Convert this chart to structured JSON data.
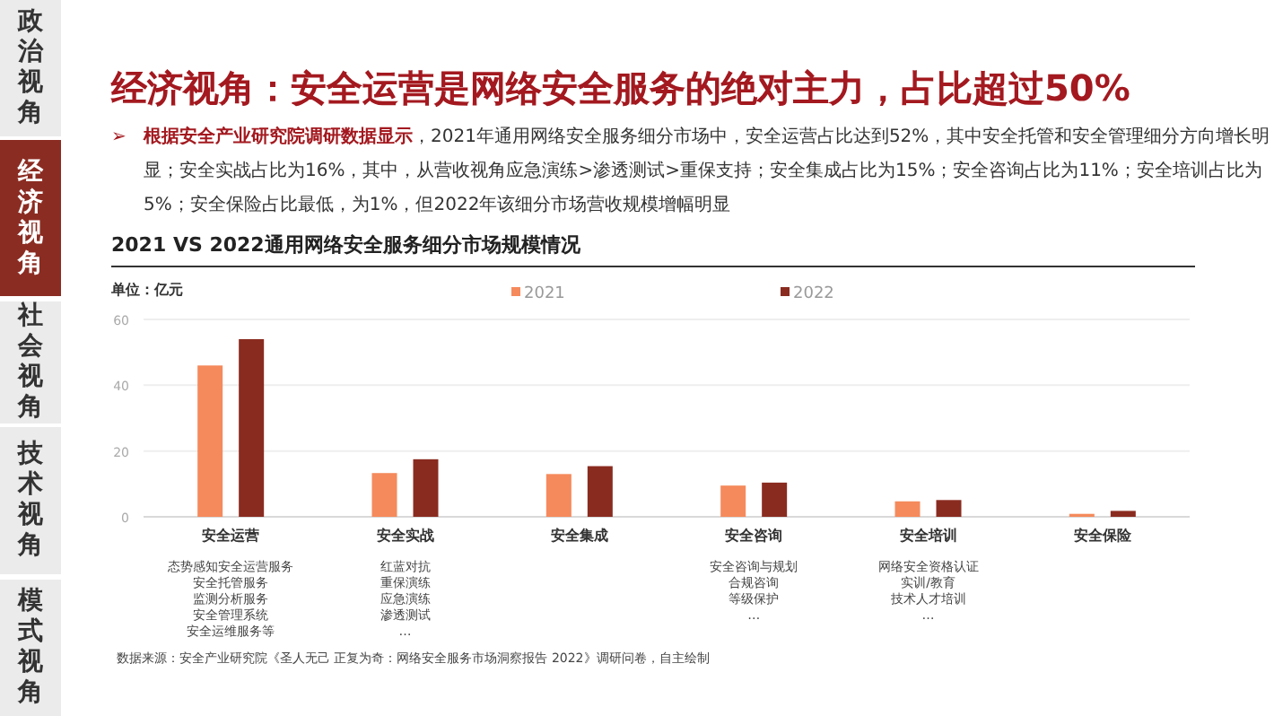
{
  "chart_data": {
    "type": "bar",
    "title": "经济视角：安全运营是网络安全服务的绝对主力，占比超过50%",
    "subtitle": "2021 VS 2022通用网络安全服务细分市场规模情况",
    "ylabel": "单位：亿元",
    "categories": [
      "安全运营",
      "安全实战",
      "安全集成",
      "安全咨询",
      "安全培训",
      "安全保险"
    ],
    "series": [
      {
        "name": "2021",
        "color": "#f58a5c",
        "values": [
          46,
          13.3,
          13,
          9.5,
          4.7,
          0.9
        ]
      },
      {
        "name": "2022",
        "color": "#8a2b20",
        "values": [
          54,
          17.5,
          15.4,
          10.4,
          5.1,
          1.8
        ]
      }
    ],
    "ylim": [
      0,
      60
    ],
    "yticks": [
      0,
      20,
      40,
      60
    ],
    "grid": "y",
    "legend": "top",
    "annotations": [
      "➢",
      "根据安全产业研究院调研数据显示",
      "，2021年通用网络安全服务细分市场中，安全运营占比达到52%，其中安全托管和安全管理细分方向增长明显；安全实战占比为16%，其中，从营收视角应急演练>渗透测试>重保支持；安全集成占比为15%；安全咨询占比为11%；安全培训占比为5%；安全保险占比最低，为1%，但2022年该细分市场营收规模增幅明显",
      "数据来源：安全产业研究院《圣人无己 正复为奇：网络安全服务市场洞察报告 2022》调研问卷，自主绘制",
      "政治视角",
      "经济视角",
      "社会视角",
      "技术视角",
      "模式视角",
      "态势感知安全运营服务",
      "安全托管服务",
      "监测分析服务",
      "安全管理系统",
      "安全运维服务等",
      "红蓝对抗",
      "重保演练",
      "应急演练",
      "渗透测试",
      "…",
      "安全咨询与规划",
      "合规咨询",
      "等级保护",
      "…",
      "网络安全资格认证",
      "实训/教育",
      "技术人才培训",
      "…"
    ]
  }
}
